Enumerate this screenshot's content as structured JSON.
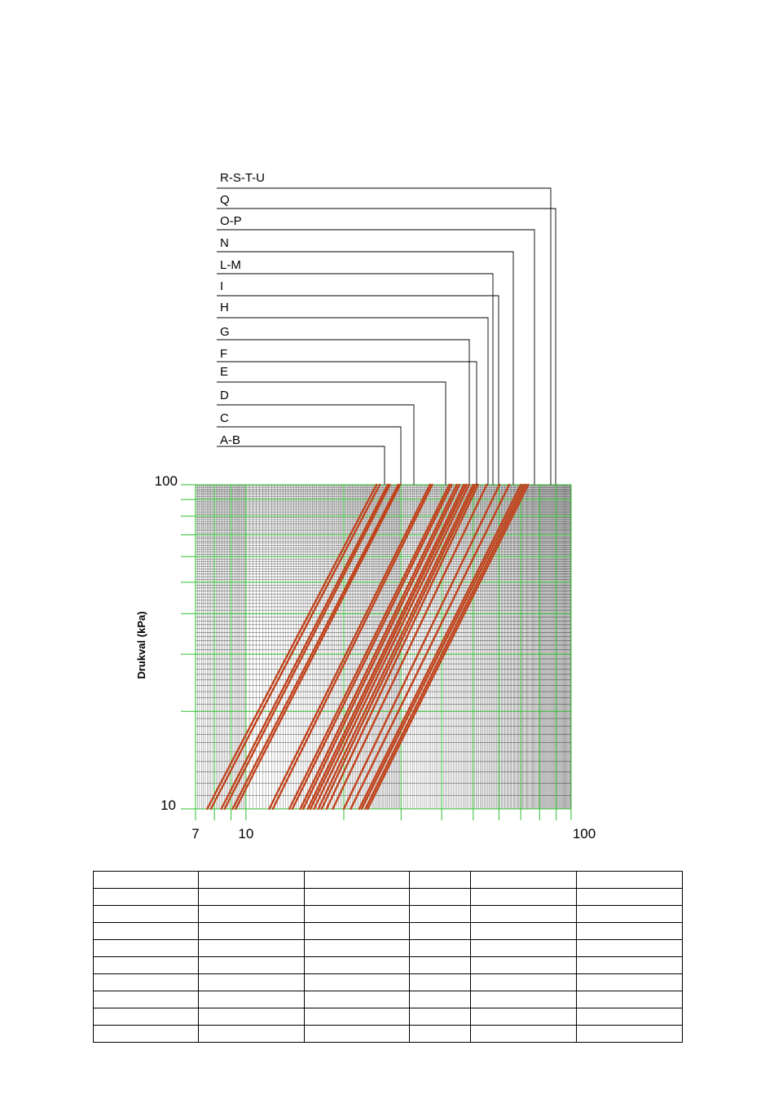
{
  "chart_data": {
    "type": "line",
    "ylabel": "Drukval (kPa)",
    "xlabel": "",
    "x_scale": "log",
    "y_scale": "log",
    "xlim": [
      7,
      100
    ],
    "ylim": [
      10,
      100
    ],
    "x_tick_labels": [
      "7",
      "10",
      "100"
    ],
    "y_tick_labels": [
      "10",
      "100"
    ],
    "grid": true,
    "series_labels": [
      "R-S-T-U",
      "Q",
      "O-P",
      "N",
      "L-M",
      "I",
      "H",
      "G",
      "F",
      "E",
      "D",
      "C",
      "A-B"
    ],
    "colors": {
      "series": "#c0421b",
      "major_grid": "#2fbf2f",
      "minor_grid": "#000000",
      "leader": "#000000"
    },
    "series": [
      {
        "x": [
          7.6,
          25.2
        ],
        "y": [
          10,
          100
        ]
      },
      {
        "x": [
          7.8,
          25.8
        ],
        "y": [
          10,
          100
        ]
      },
      {
        "x": [
          8.4,
          27.3
        ],
        "y": [
          10,
          100
        ]
      },
      {
        "x": [
          8.6,
          27.7
        ],
        "y": [
          10,
          100
        ]
      },
      {
        "x": [
          9.1,
          29.4
        ],
        "y": [
          10,
          100
        ]
      },
      {
        "x": [
          9.3,
          29.8
        ],
        "y": [
          10,
          100
        ]
      },
      {
        "x": [
          11.8,
          36.8
        ],
        "y": [
          10,
          100
        ]
      },
      {
        "x": [
          12.1,
          37.4
        ],
        "y": [
          10,
          100
        ]
      },
      {
        "x": [
          13.6,
          42.2
        ],
        "y": [
          10,
          100
        ]
      },
      {
        "x": [
          13.9,
          42.9
        ],
        "y": [
          10,
          100
        ]
      },
      {
        "x": [
          14.7,
          44.5
        ],
        "y": [
          10,
          100
        ]
      },
      {
        "x": [
          15.0,
          45.3
        ],
        "y": [
          10,
          100
        ]
      },
      {
        "x": [
          15.5,
          46.8
        ],
        "y": [
          10,
          100
        ]
      },
      {
        "x": [
          15.8,
          47.6
        ],
        "y": [
          10,
          100
        ]
      },
      {
        "x": [
          16.2,
          48.5
        ],
        "y": [
          10,
          100
        ]
      },
      {
        "x": [
          16.7,
          50.0
        ],
        "y": [
          10,
          100
        ]
      },
      {
        "x": [
          17.1,
          50.8
        ],
        "y": [
          10,
          100
        ]
      },
      {
        "x": [
          17.7,
          51.7
        ],
        "y": [
          10,
          100
        ]
      },
      {
        "x": [
          18.5,
          55.0
        ],
        "y": [
          10,
          100
        ]
      },
      {
        "x": [
          20.0,
          60.2
        ],
        "y": [
          10,
          100
        ]
      },
      {
        "x": [
          21.0,
          64.5
        ],
        "y": [
          10,
          100
        ]
      },
      {
        "x": [
          22.3,
          70.0
        ],
        "y": [
          10,
          100
        ]
      },
      {
        "x": [
          22.7,
          71.3
        ],
        "y": [
          10,
          100
        ]
      },
      {
        "x": [
          23.3,
          72.5
        ],
        "y": [
          10,
          100
        ]
      },
      {
        "x": [
          23.7,
          73.8
        ],
        "y": [
          10,
          100
        ]
      }
    ]
  }
}
